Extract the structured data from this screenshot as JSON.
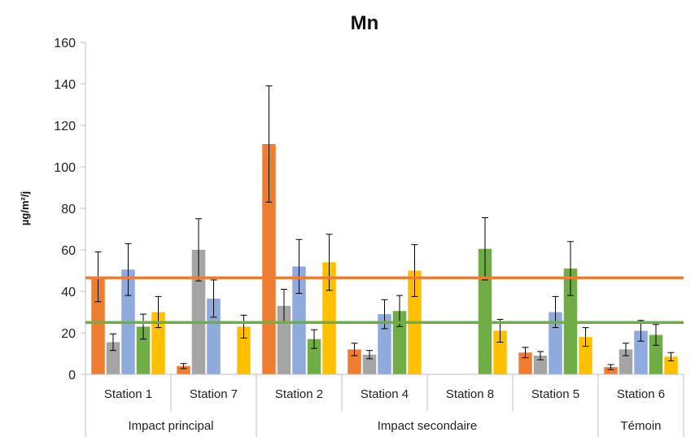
{
  "chart_data": {
    "type": "bar",
    "title": "Mn",
    "ylabel": "µg/m²/j",
    "xlabel": "",
    "ylim": [
      0,
      160
    ],
    "yticks": [
      0,
      20,
      40,
      60,
      80,
      100,
      120,
      140,
      160
    ],
    "grid": false,
    "legend": null,
    "categories": [
      "Station 1",
      "Station 7",
      "Station 2",
      "Station 4",
      "Station 8",
      "Station 5",
      "Station 6"
    ],
    "groups": [
      {
        "label": "Impact principal",
        "categories": [
          "Station 1",
          "Station 7"
        ]
      },
      {
        "label": "Impact secondaire",
        "categories": [
          "Station 2",
          "Station 4",
          "Station 8",
          "Station 5"
        ]
      },
      {
        "label": "Témoin",
        "categories": [
          "Station 6"
        ]
      }
    ],
    "series": [
      {
        "color": "#ED7D31",
        "values": [
          47,
          4,
          111,
          12,
          null,
          10.5,
          3.5
        ],
        "errors": [
          12,
          1.2,
          28,
          3,
          null,
          2.5,
          1.2
        ]
      },
      {
        "color": "#A5A5A5",
        "values": [
          15.5,
          60,
          33,
          9.5,
          null,
          9,
          12
        ],
        "errors": [
          4,
          15,
          8,
          2,
          null,
          2,
          3
        ]
      },
      {
        "color": "#8FAADC",
        "values": [
          50.5,
          36.5,
          52,
          29,
          null,
          30,
          21
        ],
        "errors": [
          12.5,
          9,
          13,
          7,
          null,
          7.5,
          5
        ]
      },
      {
        "color": "#70AD47",
        "values": [
          23,
          null,
          17,
          30.5,
          60.5,
          51,
          19
        ],
        "errors": [
          6,
          null,
          4.5,
          7.5,
          15,
          13,
          5
        ]
      },
      {
        "color": "#FFC000",
        "values": [
          30,
          23,
          54,
          50,
          21,
          18,
          8.5
        ],
        "errors": [
          7.5,
          5.5,
          13.5,
          12.5,
          5.5,
          4.5,
          2
        ]
      }
    ],
    "reference_lines": [
      {
        "value": 46.5,
        "color": "#ED7D31"
      },
      {
        "value": 25,
        "color": "#70AD47"
      }
    ]
  }
}
